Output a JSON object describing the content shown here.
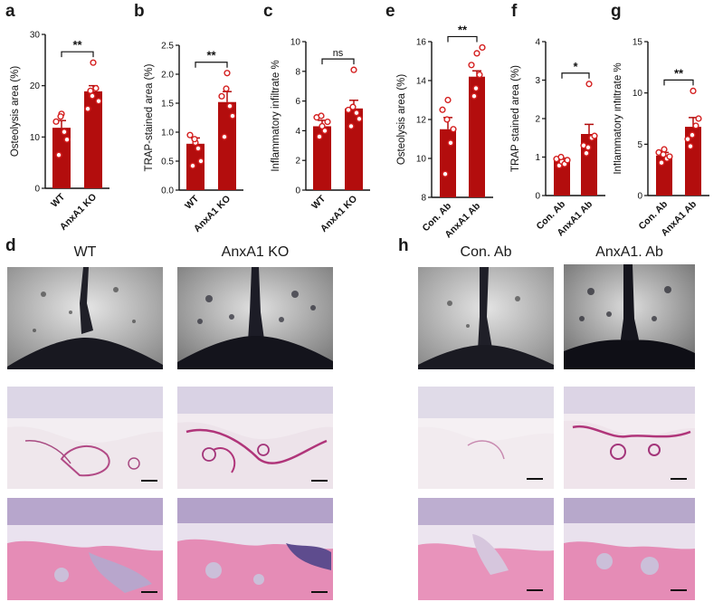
{
  "panels": {
    "a": "a",
    "b": "b",
    "c": "c",
    "d": "d",
    "e": "e",
    "f": "f",
    "g": "g",
    "h": "h"
  },
  "colors": {
    "bar": "#b30d0d",
    "point": "#d41f1f",
    "he_pink": "#e58cb6",
    "trap_bg": "#f3e6ec",
    "micro_bg": "#b9b9b9"
  },
  "image_headers": {
    "d": [
      "WT",
      "AnxA1 KO"
    ],
    "h": [
      "Con. Ab",
      "AnxA1. Ab"
    ]
  },
  "chart_data": [
    {
      "panel": "a",
      "type": "bar",
      "categories": [
        "WT",
        "AnxA1 KO"
      ],
      "values": [
        11.8,
        18.9
      ],
      "errors": [
        1.4,
        1.1
      ],
      "points": [
        [
          13,
          6.5,
          14.5,
          11,
          9.5,
          14
        ],
        [
          15.5,
          19,
          24.5,
          19.5,
          17,
          18
        ]
      ],
      "ylabel": "Osteolysis area (%)",
      "ylim": [
        0,
        30
      ],
      "yticks": [
        "0",
        "10",
        "20",
        "30"
      ],
      "significance": "**"
    },
    {
      "panel": "b",
      "type": "bar",
      "categories": [
        "WT",
        "AnxA1 KO"
      ],
      "values": [
        0.8,
        1.52
      ],
      "errors": [
        0.1,
        0.18
      ],
      "points": [
        [
          0.95,
          0.42,
          0.82,
          0.72,
          0.5,
          0.88
        ],
        [
          1.62,
          0.92,
          2.02,
          1.45,
          1.28,
          1.75
        ]
      ],
      "ylabel": "TRAP-stained area (%)",
      "ylim": [
        0,
        2.5
      ],
      "yticks": [
        "0.0",
        "0.5",
        "1.0",
        "1.5",
        "2.0",
        "2.5"
      ],
      "significance": "**"
    },
    {
      "panel": "c",
      "type": "bar",
      "categories": [
        "WT",
        "AnxA1 KO"
      ],
      "values": [
        4.3,
        5.5
      ],
      "errors": [
        0.4,
        0.55
      ],
      "points": [
        [
          4.9,
          3.6,
          4.3,
          4.0,
          4.6,
          5.0
        ],
        [
          5.4,
          4.3,
          8.1,
          5.2,
          4.8,
          5.6
        ]
      ],
      "ylabel": "Inflammatory infiltrate %",
      "ylim": [
        0,
        10
      ],
      "yticks": [
        "0",
        "2",
        "4",
        "6",
        "8",
        "10"
      ],
      "significance": "ns"
    },
    {
      "panel": "e",
      "type": "bar",
      "categories": [
        "Con. Ab",
        "AnxA1 Ab"
      ],
      "values": [
        11.5,
        14.2
      ],
      "errors": [
        0.6,
        0.3
      ],
      "points": [
        [
          12.5,
          9.2,
          13,
          10.8,
          11.5,
          12
        ],
        [
          14.8,
          13.2,
          15.4,
          14.3,
          15.7,
          13.6
        ]
      ],
      "ylabel": "Osteolysis area (%)",
      "ylim": [
        8,
        16
      ],
      "yticks": [
        "8",
        "10",
        "12",
        "14",
        "16"
      ],
      "significance": "**"
    },
    {
      "panel": "f",
      "type": "bar",
      "categories": [
        "Con. Ab",
        "AnxA1 Ab"
      ],
      "values": [
        0.9,
        1.6
      ],
      "errors": [
        0.07,
        0.25
      ],
      "points": [
        [
          0.95,
          0.78,
          0.88,
          0.82,
          0.92,
          1.0
        ],
        [
          1.3,
          1.1,
          2.9,
          1.5,
          1.55,
          1.25
        ]
      ],
      "ylabel": "TRAP stained area (%)",
      "ylim": [
        0,
        4
      ],
      "yticks": [
        "0",
        "1",
        "2",
        "3",
        "4"
      ],
      "significance": "*"
    },
    {
      "panel": "g",
      "type": "bar",
      "categories": [
        "Con. Ab",
        "AnxA1 Ab"
      ],
      "values": [
        3.9,
        6.7
      ],
      "errors": [
        0.3,
        0.9
      ],
      "points": [
        [
          4.2,
          3.2,
          4.5,
          3.6,
          3.8,
          4.0
        ],
        [
          5.5,
          4.8,
          10.2,
          6.8,
          7.5,
          5.9
        ]
      ],
      "ylabel": "Inflammatory infiltrate %",
      "ylim": [
        0,
        15
      ],
      "yticks": [
        "0",
        "5",
        "10",
        "15"
      ],
      "significance": "**"
    }
  ]
}
